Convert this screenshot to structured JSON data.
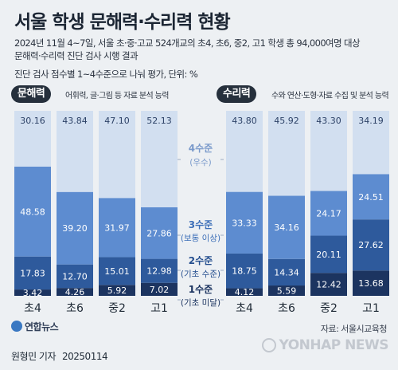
{
  "header": {
    "title": "서울 학생 문해력·수리력 현황",
    "subtitle_line1": "2024년 11월 4~7일, 서울 초·중·고교 524개교의 초4, 초6, 중2, 고1 학생 총 94,000여명 대상",
    "subtitle_line2": "문해력·수리력 진단 검사 시행 결과",
    "subtitle_line3": "진단 검사 점수별 1~4수준으로 나눠 평가, 단위: %"
  },
  "groups": {
    "literacy": {
      "label": "문해력",
      "note": "어휘력, 글·그림 등 자료 분석 능력"
    },
    "numeracy": {
      "label": "수리력",
      "note": "수와 연산·도형·자료 수집 및 분석 능력"
    }
  },
  "chart_data": {
    "type": "bar",
    "stacked": true,
    "normalized_percent": true,
    "levels": [
      {
        "name": "4수준",
        "desc": "(우수)",
        "color": "#d2dff0"
      },
      {
        "name": "3수준",
        "desc": "(보통 이상)",
        "color": "#5d8cd0"
      },
      {
        "name": "2수준",
        "desc": "(기초 수준)",
        "color": "#2e5a9c"
      },
      {
        "name": "1수준",
        "desc": "(기초 미달)",
        "color": "#1c3460"
      }
    ],
    "panels": [
      {
        "name": "문해력",
        "categories": [
          "초4",
          "초6",
          "중2",
          "고1"
        ],
        "series": [
          {
            "name": "4수준",
            "values": [
              30.16,
              43.84,
              47.1,
              52.13
            ]
          },
          {
            "name": "3수준",
            "values": [
              48.58,
              39.2,
              31.97,
              27.86
            ]
          },
          {
            "name": "2수준",
            "values": [
              17.83,
              12.7,
              15.01,
              12.98
            ]
          },
          {
            "name": "1수준",
            "values": [
              3.42,
              4.26,
              5.92,
              7.02
            ]
          }
        ],
        "labels": [
          [
            "30.16",
            "43.84",
            "47.10",
            "52.13"
          ],
          [
            "48.58",
            "39.20",
            "31.97",
            "27.86"
          ],
          [
            "17.83",
            "12.70",
            "15.01",
            "12.98"
          ],
          [
            "3.42",
            "4.26",
            "5.92",
            "7.02"
          ]
        ]
      },
      {
        "name": "수리력",
        "categories": [
          "초4",
          "초6",
          "중2",
          "고1"
        ],
        "series": [
          {
            "name": "4수준",
            "values": [
              43.8,
              45.92,
              43.3,
              34.19
            ]
          },
          {
            "name": "3수준",
            "values": [
              33.33,
              34.16,
              24.17,
              24.51
            ]
          },
          {
            "name": "2수준",
            "values": [
              18.75,
              14.34,
              20.11,
              27.62
            ]
          },
          {
            "name": "1수준",
            "values": [
              4.12,
              5.59,
              12.42,
              13.68
            ]
          }
        ],
        "labels": [
          [
            "43.80",
            "45.92",
            "43.30",
            "34.19"
          ],
          [
            "33.33",
            "34.16",
            "24.17",
            "24.51"
          ],
          [
            "18.75",
            "14.34",
            "20.11",
            "27.62"
          ],
          [
            "4.12",
            "5.59",
            "12.42",
            "13.68"
          ]
        ]
      }
    ]
  },
  "footer": {
    "logo": "연합뉴스",
    "source": "자료: 서울시교육청",
    "reporter": "원형민 기자",
    "date": "20250114",
    "watermark": "YONHAP NEWS"
  }
}
